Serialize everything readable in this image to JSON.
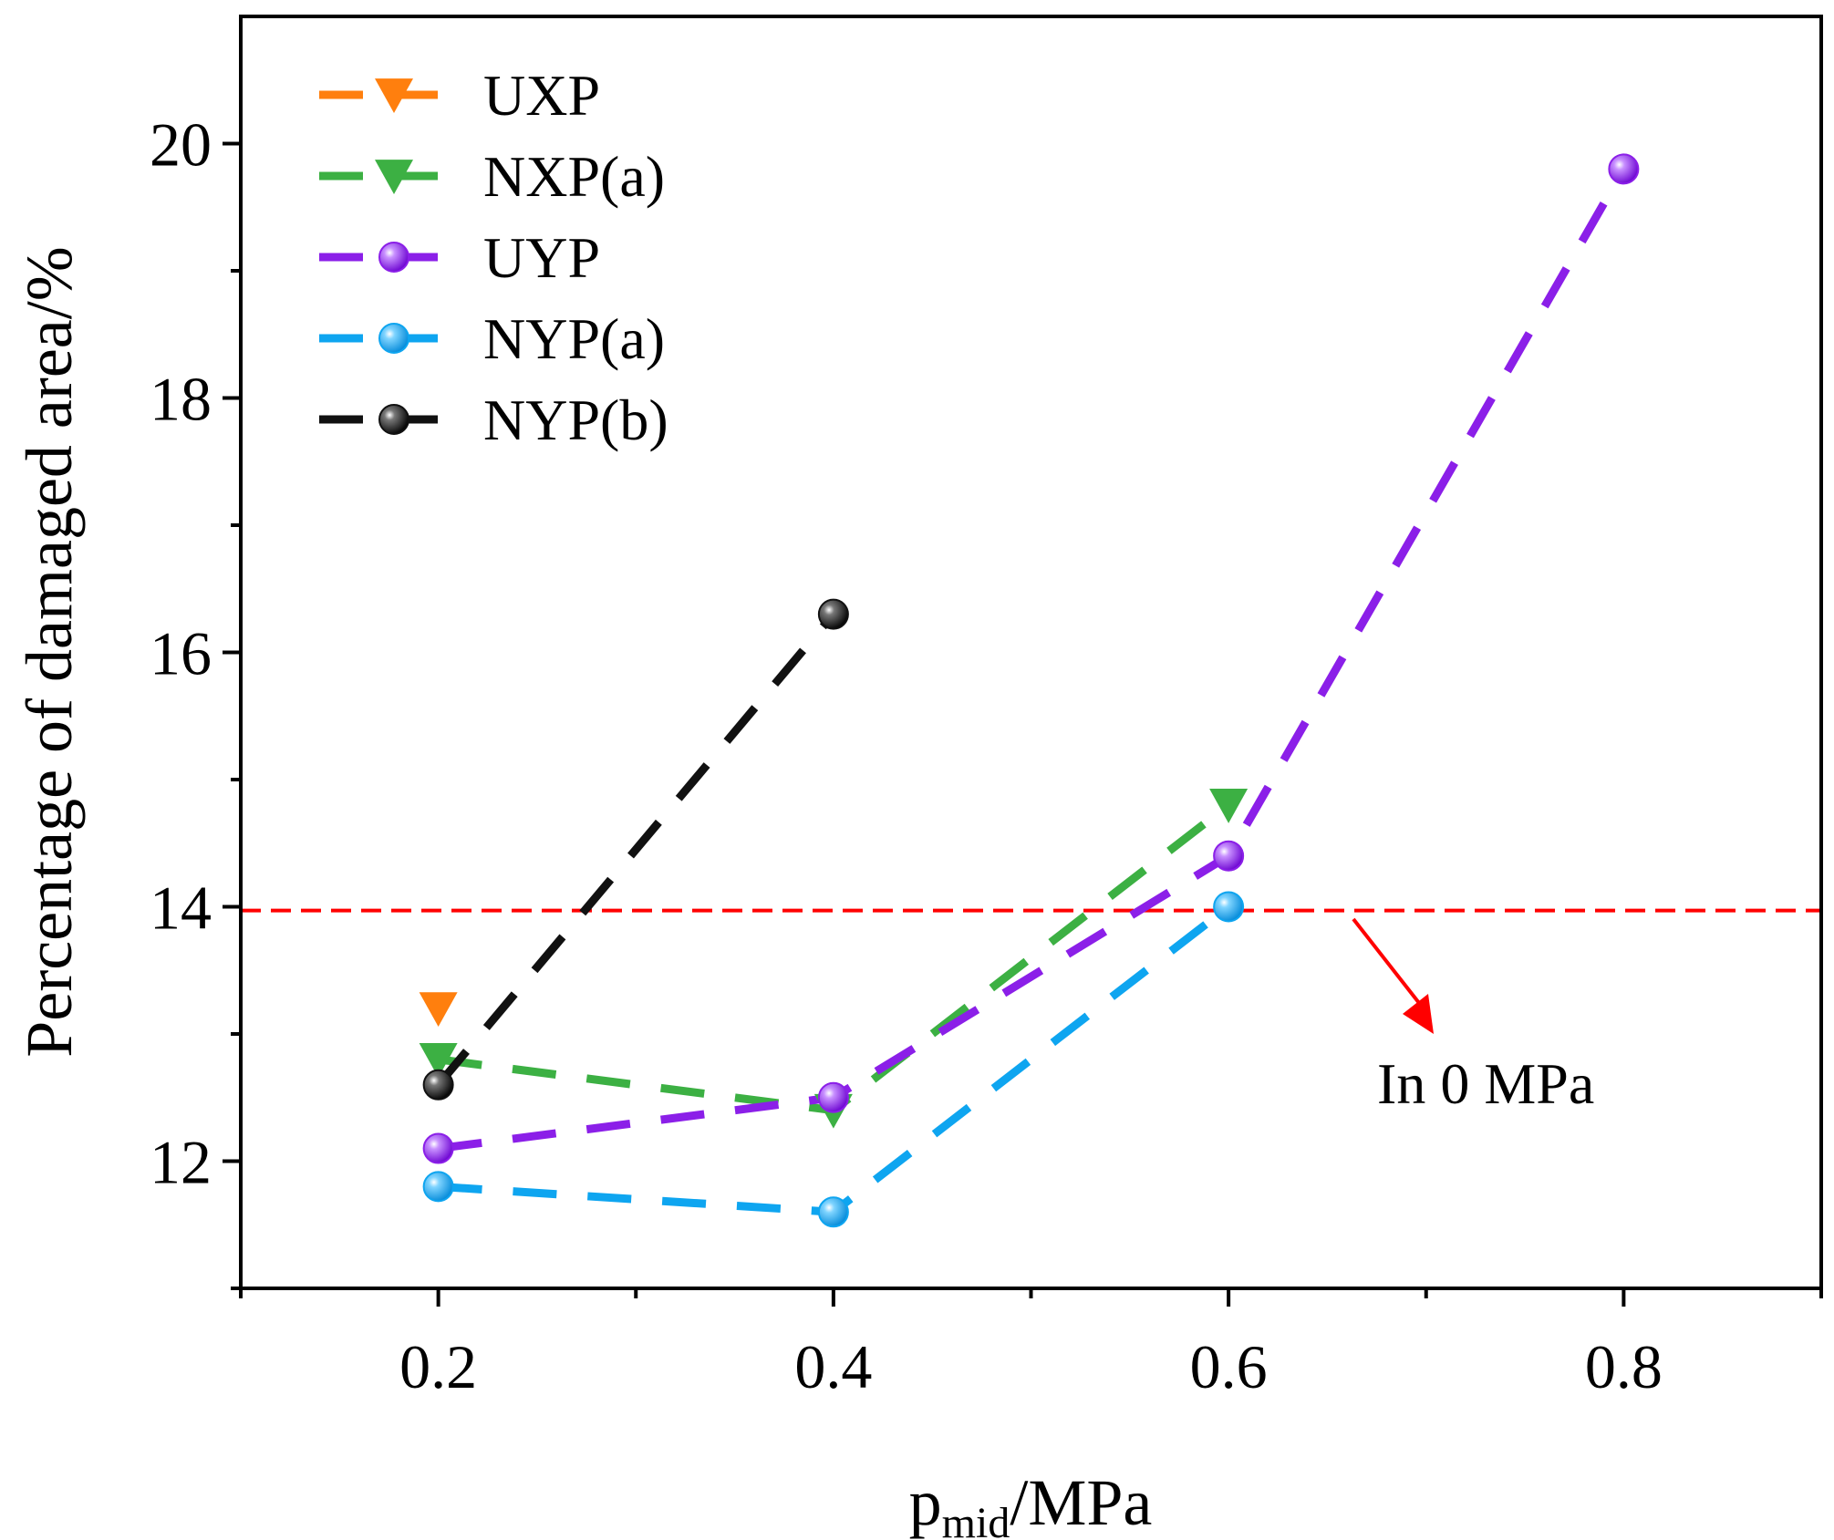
{
  "chart_data": {
    "type": "line",
    "title": "",
    "xlabel": {
      "main": "p",
      "sub": "mid",
      "suffix": "/MPa"
    },
    "ylabel": "Percentage of damaged area/%",
    "xlim": [
      0.1,
      0.9
    ],
    "ylim": [
      11,
      21
    ],
    "xticks": [
      0.2,
      0.4,
      0.6,
      0.8
    ],
    "xtick_labels": [
      "0.2",
      "0.4",
      "0.6",
      "0.8"
    ],
    "xminor": [
      0.1,
      0.3,
      0.5,
      0.7,
      0.9
    ],
    "yticks": [
      12,
      14,
      16,
      18,
      20
    ],
    "ytick_labels": [
      "12",
      "14",
      "16",
      "18",
      "20"
    ],
    "yminor": [
      11,
      13,
      15,
      17,
      19
    ],
    "grid": false,
    "legend_position": "top-left",
    "series": [
      {
        "name": "UXP",
        "color": "#ff7f0e",
        "marker": "triangle-down",
        "x": [
          0.2
        ],
        "y": [
          13.2
        ]
      },
      {
        "name": "NXP(a)",
        "color": "#3cb043",
        "marker": "triangle-down",
        "x": [
          0.2,
          0.4,
          0.6
        ],
        "y": [
          12.8,
          12.4,
          14.8
        ]
      },
      {
        "name": "UYP",
        "color": "#8b1fe8",
        "marker": "sphere",
        "x": [
          0.2,
          0.4,
          0.6,
          0.8
        ],
        "y": [
          12.1,
          12.5,
          14.4,
          19.8
        ]
      },
      {
        "name": "NYP(a)",
        "color": "#0ea5f0",
        "marker": "sphere",
        "x": [
          0.2,
          0.4,
          0.6
        ],
        "y": [
          11.8,
          11.6,
          14.0
        ]
      },
      {
        "name": "NYP(b)",
        "color": "#111111",
        "marker": "sphere",
        "x": [
          0.2,
          0.4
        ],
        "y": [
          12.6,
          16.3
        ]
      }
    ],
    "reference_line": {
      "y": 13.97,
      "color": "#ff0000",
      "label": "In 0 MPa"
    }
  }
}
